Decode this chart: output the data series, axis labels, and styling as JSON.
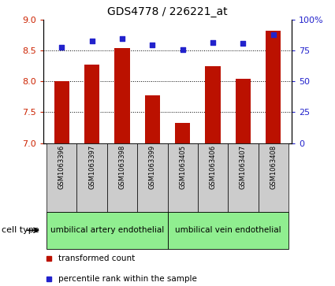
{
  "title": "GDS4778 / 226221_at",
  "samples": [
    "GSM1063396",
    "GSM1063397",
    "GSM1063398",
    "GSM1063399",
    "GSM1063405",
    "GSM1063406",
    "GSM1063407",
    "GSM1063408"
  ],
  "transformed_count": [
    8.0,
    8.28,
    8.55,
    7.78,
    7.33,
    8.25,
    8.05,
    8.83
  ],
  "percentile_rank": [
    78,
    83,
    85,
    80,
    76,
    82,
    81,
    88
  ],
  "ylim_left": [
    7,
    9
  ],
  "ylim_right": [
    0,
    100
  ],
  "yticks_left": [
    7,
    7.5,
    8,
    8.5,
    9
  ],
  "yticks_right": [
    0,
    25,
    50,
    75,
    100
  ],
  "ytick_labels_right": [
    "0",
    "25",
    "50",
    "75",
    "100%"
  ],
  "bar_color": "#bb1100",
  "dot_color": "#2222cc",
  "group1_label": "umbilical artery endothelial",
  "group2_label": "umbilical vein endothelial",
  "group1_indices": [
    0,
    1,
    2,
    3
  ],
  "group2_indices": [
    4,
    5,
    6,
    7
  ],
  "cell_type_label": "cell type",
  "legend_bar_label": "transformed count",
  "legend_dot_label": "percentile rank within the sample",
  "group_bg_color": "#90ee90",
  "tick_label_color_left": "#cc2200",
  "tick_label_color_right": "#2222cc",
  "grid_color": "#000000",
  "sample_bg_color": "#cccccc"
}
